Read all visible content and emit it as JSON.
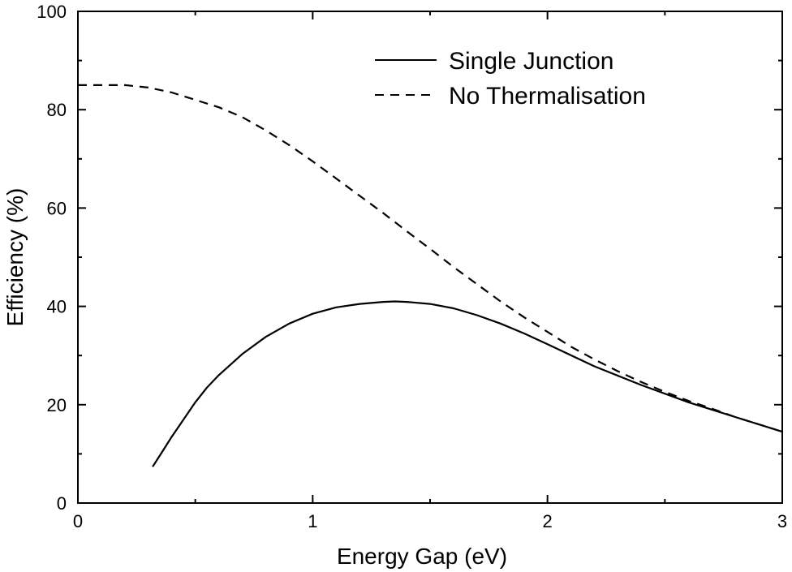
{
  "chart_data": {
    "type": "line",
    "xlabel": "Energy Gap (eV)",
    "ylabel": "Efficiency (%)",
    "xlim": [
      0,
      3
    ],
    "ylim": [
      0,
      100
    ],
    "xticks": [
      0,
      1,
      2,
      3
    ],
    "yticks": [
      0,
      20,
      40,
      60,
      80,
      100
    ],
    "grid": false,
    "legend_position": "top-right",
    "series": [
      {
        "name": "Single Junction",
        "line_style": "solid",
        "color": "#000000",
        "x": [
          0.32,
          0.36,
          0.4,
          0.45,
          0.5,
          0.55,
          0.6,
          0.7,
          0.8,
          0.9,
          1.0,
          1.1,
          1.2,
          1.3,
          1.35,
          1.4,
          1.5,
          1.6,
          1.7,
          1.8,
          1.9,
          2.0,
          2.2,
          2.4,
          2.6,
          2.8,
          3.0
        ],
        "y": [
          7.5,
          10.5,
          13.5,
          17,
          20.5,
          23.5,
          26,
          30.3,
          33.8,
          36.5,
          38.5,
          39.8,
          40.5,
          40.9,
          41,
          40.9,
          40.5,
          39.6,
          38.2,
          36.5,
          34.5,
          32.3,
          27.8,
          24,
          20.5,
          17.5,
          14.5
        ]
      },
      {
        "name": "No Thermalisation",
        "line_style": "dashed",
        "color": "#000000",
        "x": [
          0.0,
          0.1,
          0.2,
          0.3,
          0.4,
          0.5,
          0.6,
          0.7,
          0.8,
          0.9,
          1.0,
          1.1,
          1.2,
          1.3,
          1.4,
          1.5,
          1.6,
          1.7,
          1.8,
          1.9,
          2.0,
          2.1,
          2.2,
          2.3,
          2.4,
          2.5,
          2.6,
          2.7,
          2.8,
          2.9,
          3.0
        ],
        "y": [
          85,
          85,
          85,
          84.5,
          83.5,
          82,
          80.5,
          78.5,
          75.8,
          72.8,
          69.5,
          66,
          62.5,
          59,
          55.3,
          51.7,
          48,
          44.5,
          41,
          37.8,
          34.8,
          31.8,
          29.2,
          26.8,
          24.6,
          22.6,
          20.8,
          19.2,
          17.5,
          16,
          14.5
        ]
      }
    ]
  }
}
